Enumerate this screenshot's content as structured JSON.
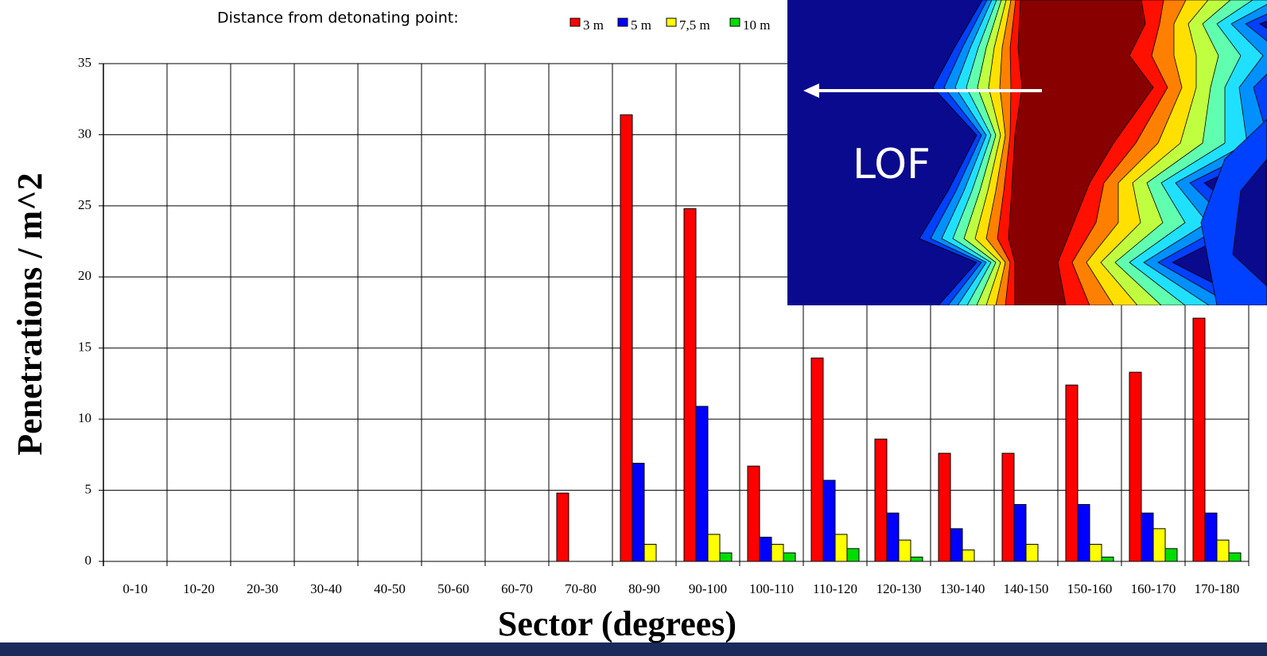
{
  "chart_data": {
    "type": "bar",
    "legend_title": "Distance from detonating point:",
    "xlabel": "Sector (degrees)",
    "ylabel": "Penetrations / m^2",
    "categories": [
      "0-10",
      "10-20",
      "20-30",
      "30-40",
      "40-50",
      "50-60",
      "60-70",
      "70-80",
      "80-90",
      "90-100",
      "100-110",
      "110-120",
      "120-130",
      "130-140",
      "140-150",
      "150-160",
      "160-170",
      "170-180"
    ],
    "series": [
      {
        "name": "3 m",
        "color": "#ff0000",
        "values": [
          0,
          0,
          0,
          0,
          0,
          0,
          0,
          4.8,
          31.4,
          24.8,
          6.7,
          14.3,
          8.6,
          7.6,
          7.6,
          12.4,
          13.3,
          17.1
        ]
      },
      {
        "name": "5 m",
        "color": "#0000ff",
        "values": [
          0,
          0,
          0,
          0,
          0,
          0,
          0,
          0,
          6.9,
          10.9,
          1.7,
          5.7,
          3.4,
          2.3,
          4.0,
          4.0,
          3.4,
          3.4
        ]
      },
      {
        "name": "7,5 m",
        "color": "#ffff00",
        "values": [
          0,
          0,
          0,
          0,
          0,
          0,
          0,
          0,
          1.2,
          1.9,
          1.2,
          1.9,
          1.5,
          0.8,
          1.2,
          1.2,
          2.3,
          1.5
        ]
      },
      {
        "name": "10 m",
        "color": "#00dd00",
        "values": [
          0,
          0,
          0,
          0,
          0,
          0,
          0,
          0,
          0,
          0.6,
          0.6,
          0.9,
          0.3,
          0,
          0,
          0.3,
          0.9,
          0.6
        ]
      }
    ],
    "ylim": [
      0,
      35
    ],
    "yticks": [
      0,
      5,
      10,
      15,
      20,
      25,
      30,
      35
    ],
    "grid": true,
    "inset_label": "LOF"
  }
}
